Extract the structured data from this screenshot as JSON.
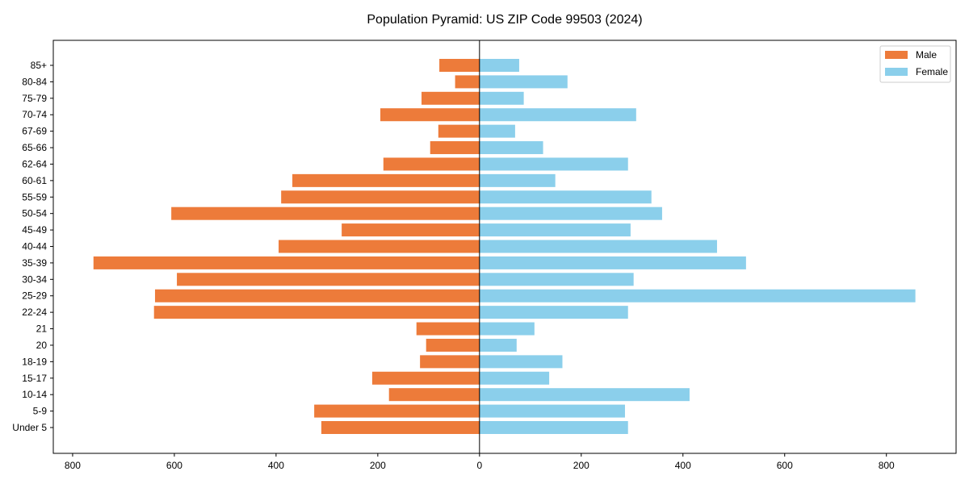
{
  "chart_data": {
    "type": "bar",
    "orientation": "horizontal",
    "title": "Population Pyramid: US ZIP Code 99503 (2024)",
    "xlabel": "",
    "ylabel": "",
    "xlim": [
      -838,
      937
    ],
    "xticks": [
      -800,
      -600,
      -400,
      -200,
      0,
      200,
      400,
      600,
      800
    ],
    "xtick_labels": [
      "800",
      "600",
      "400",
      "200",
      "0",
      "200",
      "400",
      "600",
      "800"
    ],
    "legend_position": "top-right",
    "grid": false,
    "categories": [
      "Under 5",
      "5-9",
      "10-14",
      "15-17",
      "18-19",
      "20",
      "21",
      "22-24",
      "25-29",
      "30-34",
      "35-39",
      "40-44",
      "45-49",
      "50-54",
      "55-59",
      "60-61",
      "62-64",
      "65-66",
      "67-69",
      "70-74",
      "75-79",
      "80-84",
      "85+"
    ],
    "series": [
      {
        "name": "Male",
        "color": "#ED7B3A",
        "values": [
          311,
          325,
          178,
          211,
          117,
          105,
          124,
          640,
          638,
          595,
          759,
          395,
          271,
          606,
          390,
          368,
          189,
          97,
          81,
          195,
          114,
          48,
          79
        ]
      },
      {
        "name": "Female",
        "color": "#8BCFEB",
        "values": [
          292,
          286,
          413,
          137,
          163,
          73,
          108,
          292,
          857,
          303,
          524,
          467,
          297,
          359,
          338,
          149,
          292,
          125,
          70,
          308,
          87,
          173,
          78
        ]
      }
    ]
  }
}
